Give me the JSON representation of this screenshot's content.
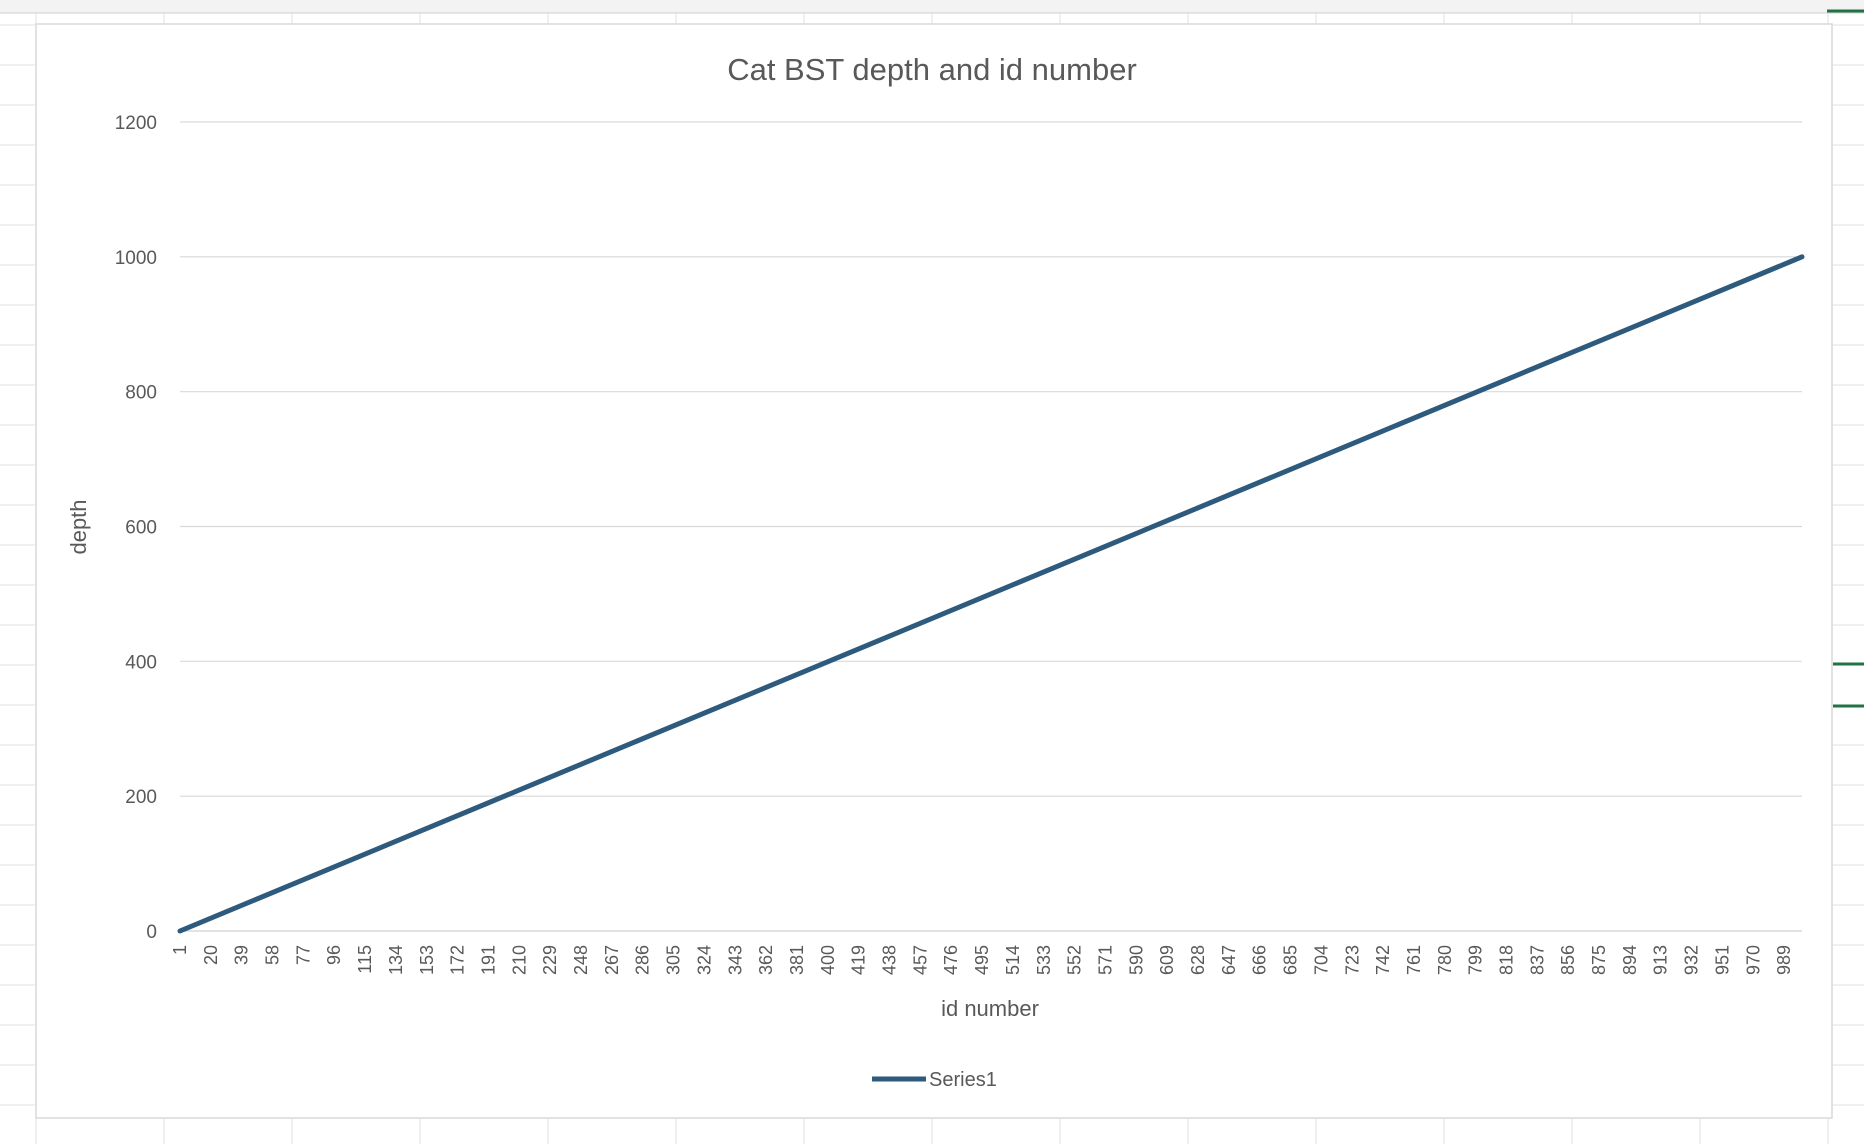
{
  "chart_data": {
    "type": "line",
    "title": "Cat BST depth and id number",
    "xlabel": "id number",
    "ylabel": "depth",
    "ylim": [
      0,
      1200
    ],
    "yticks": [
      0,
      200,
      400,
      600,
      800,
      1000,
      1200
    ],
    "x_range": [
      1,
      1000
    ],
    "x_tick_labels": [
      "1",
      "20",
      "39",
      "58",
      "77",
      "96",
      "115",
      "134",
      "153",
      "172",
      "191",
      "210",
      "229",
      "248",
      "267",
      "286",
      "305",
      "324",
      "343",
      "362",
      "381",
      "400",
      "419",
      "438",
      "457",
      "476",
      "495",
      "514",
      "533",
      "552",
      "571",
      "590",
      "609",
      "628",
      "647",
      "666",
      "685",
      "704",
      "723",
      "742",
      "761",
      "780",
      "799",
      "818",
      "837",
      "856",
      "875",
      "894",
      "913",
      "932",
      "951",
      "970",
      "989"
    ],
    "grid": "horizontal major",
    "legend": {
      "position": "bottom"
    },
    "series": [
      {
        "name": "Series1",
        "color": "#2e5b7d",
        "x": [
          1,
          1000
        ],
        "values": [
          0,
          1000
        ]
      }
    ]
  },
  "colors": {
    "series": "#2e5b7d",
    "gridline": "#d9d9d9",
    "text": "#595959",
    "sheet_grid": "#e1e1e1",
    "selection": "#217346"
  }
}
